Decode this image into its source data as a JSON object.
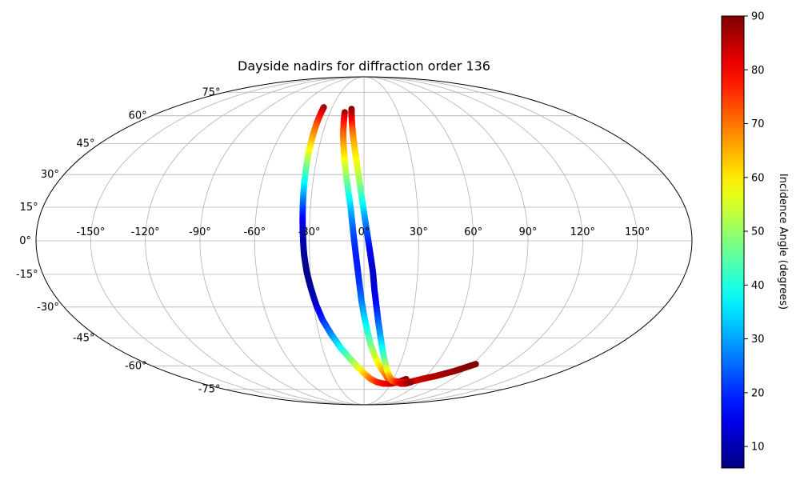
{
  "chart_data": {
    "type": "scatter",
    "projection": "mollweide",
    "title": "Dayside nadirs for diffraction order 136",
    "xlabel": "",
    "ylabel": "",
    "grid": true,
    "xlim": [
      -180,
      180
    ],
    "ylim": [
      -90,
      90
    ],
    "lon_ticks": [
      -150,
      -120,
      -90,
      -60,
      -30,
      0,
      30,
      60,
      90,
      120,
      150
    ],
    "lon_tick_labels": [
      "-150°",
      "-120°",
      "-90°",
      "-60°",
      "-30°",
      "0°",
      "30°",
      "60°",
      "90°",
      "120°",
      "150°"
    ],
    "lat_ticks": [
      75,
      60,
      45,
      30,
      15,
      0,
      -15,
      -30,
      -45,
      -60,
      -75
    ],
    "lat_tick_labels": [
      "75°",
      "60°",
      "45°",
      "30°",
      "15°",
      "0°",
      "-15°",
      "-30°",
      "-45°",
      "-60°",
      "-75°"
    ],
    "colorbar": {
      "label": "Incidence Angle (degrees)",
      "colormap": "jet",
      "range": [
        6,
        90
      ],
      "ticks": [
        10,
        20,
        30,
        40,
        50,
        60,
        70,
        80,
        90
      ]
    },
    "series": [
      {
        "points": [
          [
            -38,
            65,
            88
          ],
          [
            -37.5,
            60,
            80
          ],
          [
            -37,
            54,
            72
          ],
          [
            -36.5,
            48,
            66
          ],
          [
            -36,
            41,
            58
          ],
          [
            -35.5,
            34,
            48
          ],
          [
            -35,
            26,
            38
          ],
          [
            -34.5,
            18,
            27
          ],
          [
            -34,
            10,
            17
          ],
          [
            -33.5,
            2,
            11
          ],
          [
            -33,
            -6,
            8
          ],
          [
            -32,
            -14,
            7
          ],
          [
            -30.5,
            -21,
            8
          ],
          [
            -28.5,
            -29,
            12
          ],
          [
            -26,
            -36,
            19
          ],
          [
            -22,
            -43,
            27
          ],
          [
            -17,
            -50,
            37
          ],
          [
            -11,
            -56,
            47
          ],
          [
            -5,
            -61,
            55
          ],
          [
            1,
            -65,
            63
          ],
          [
            7,
            -68,
            70
          ],
          [
            14,
            -70,
            76
          ],
          [
            22,
            -71,
            80
          ],
          [
            30,
            -71,
            83
          ],
          [
            37,
            -70,
            86
          ],
          [
            43,
            -68,
            89
          ]
        ]
      },
      {
        "points": [
          [
            -17,
            62,
            88
          ],
          [
            -16,
            56,
            78
          ],
          [
            -15,
            50,
            72
          ],
          [
            -13.5,
            43,
            65
          ],
          [
            -12,
            36,
            58
          ],
          [
            -10.5,
            29,
            50
          ],
          [
            -9,
            22,
            42
          ],
          [
            -7.5,
            15,
            34
          ],
          [
            -6.5,
            8,
            27
          ],
          [
            -5.5,
            1,
            22
          ],
          [
            -4.5,
            -6,
            19
          ],
          [
            -3.5,
            -13,
            19
          ],
          [
            -2.5,
            -20,
            21
          ],
          [
            -1.5,
            -27,
            26
          ],
          [
            0,
            -34,
            32
          ],
          [
            2,
            -41,
            39
          ],
          [
            4.5,
            -48,
            46
          ],
          [
            8,
            -54,
            53
          ],
          [
            12,
            -59,
            59
          ],
          [
            17,
            -63,
            65
          ],
          [
            23,
            -67,
            71
          ],
          [
            30,
            -69,
            76
          ],
          [
            39,
            -70,
            80
          ],
          [
            49,
            -70,
            82
          ],
          [
            59,
            -68,
            84
          ],
          [
            70,
            -66,
            86
          ],
          [
            82,
            -63,
            88
          ],
          [
            93,
            -59,
            90
          ]
        ]
      },
      {
        "points": [
          [
            -11.5,
            64,
            90
          ],
          [
            -10,
            58,
            82
          ],
          [
            -8.5,
            52,
            72
          ],
          [
            -7,
            46,
            66
          ],
          [
            -5.5,
            40,
            61
          ],
          [
            -4,
            33,
            56
          ],
          [
            -2.5,
            26,
            50
          ],
          [
            -1,
            18,
            40
          ],
          [
            0.5,
            10,
            30
          ],
          [
            2,
            2,
            22
          ],
          [
            3.5,
            -6,
            15
          ],
          [
            5,
            -14,
            12
          ],
          [
            6,
            -22,
            13
          ],
          [
            7.5,
            -30,
            18
          ],
          [
            9,
            -37,
            24
          ],
          [
            11,
            -44,
            30
          ],
          [
            13.5,
            -51,
            38
          ],
          [
            16.5,
            -57,
            46
          ],
          [
            20,
            -62,
            55
          ],
          [
            24.5,
            -66,
            63
          ],
          [
            29.5,
            -69,
            70
          ],
          [
            35,
            -70,
            76
          ],
          [
            41,
            -71,
            82
          ],
          [
            46,
            -71,
            85
          ],
          [
            51,
            -70,
            88
          ]
        ]
      }
    ]
  }
}
